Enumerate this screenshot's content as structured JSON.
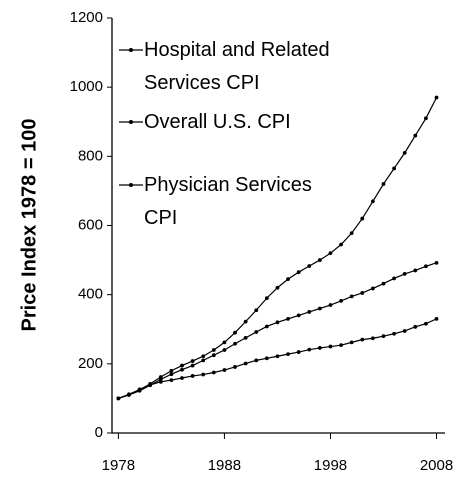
{
  "chart_data": {
    "type": "line",
    "ylabel": "Price Index 1978 = 100",
    "x": [
      1978,
      1979,
      1980,
      1981,
      1982,
      1983,
      1984,
      1985,
      1986,
      1987,
      1988,
      1989,
      1990,
      1991,
      1992,
      1993,
      1994,
      1995,
      1996,
      1997,
      1998,
      1999,
      2000,
      2001,
      2002,
      2003,
      2004,
      2005,
      2006,
      2007,
      2008
    ],
    "series": [
      {
        "name": "Hospital and Related Services CPI",
        "color": "#000000",
        "values": [
          100,
          112,
          125,
          142,
          162,
          180,
          195,
          208,
          222,
          240,
          262,
          290,
          322,
          355,
          390,
          420,
          445,
          465,
          483,
          500,
          520,
          545,
          578,
          620,
          670,
          720,
          765,
          810,
          860,
          910,
          970
        ]
      },
      {
        "name": "Overall U.S. CPI",
        "color": "#000000",
        "values": [
          100,
          111,
          126,
          139,
          148,
          153,
          159,
          165,
          169,
          175,
          182,
          191,
          201,
          210,
          216,
          222,
          228,
          234,
          241,
          246,
          250,
          254,
          262,
          270,
          274,
          280,
          287,
          295,
          307,
          316,
          330
        ]
      },
      {
        "name": "Physician Services CPI",
        "color": "#000000",
        "values": [
          100,
          110,
          122,
          138,
          155,
          170,
          183,
          195,
          210,
          225,
          240,
          258,
          275,
          292,
          308,
          320,
          330,
          340,
          350,
          360,
          370,
          382,
          395,
          405,
          418,
          432,
          447,
          460,
          470,
          482,
          492
        ]
      }
    ],
    "xlim": [
      1977.4,
      2008.8
    ],
    "xticks": [
      1978,
      1988,
      1998,
      2008
    ],
    "ylim": [
      0,
      1200
    ],
    "yticks": [
      0,
      200,
      400,
      600,
      800,
      1000,
      1200
    ],
    "grid": false
  }
}
